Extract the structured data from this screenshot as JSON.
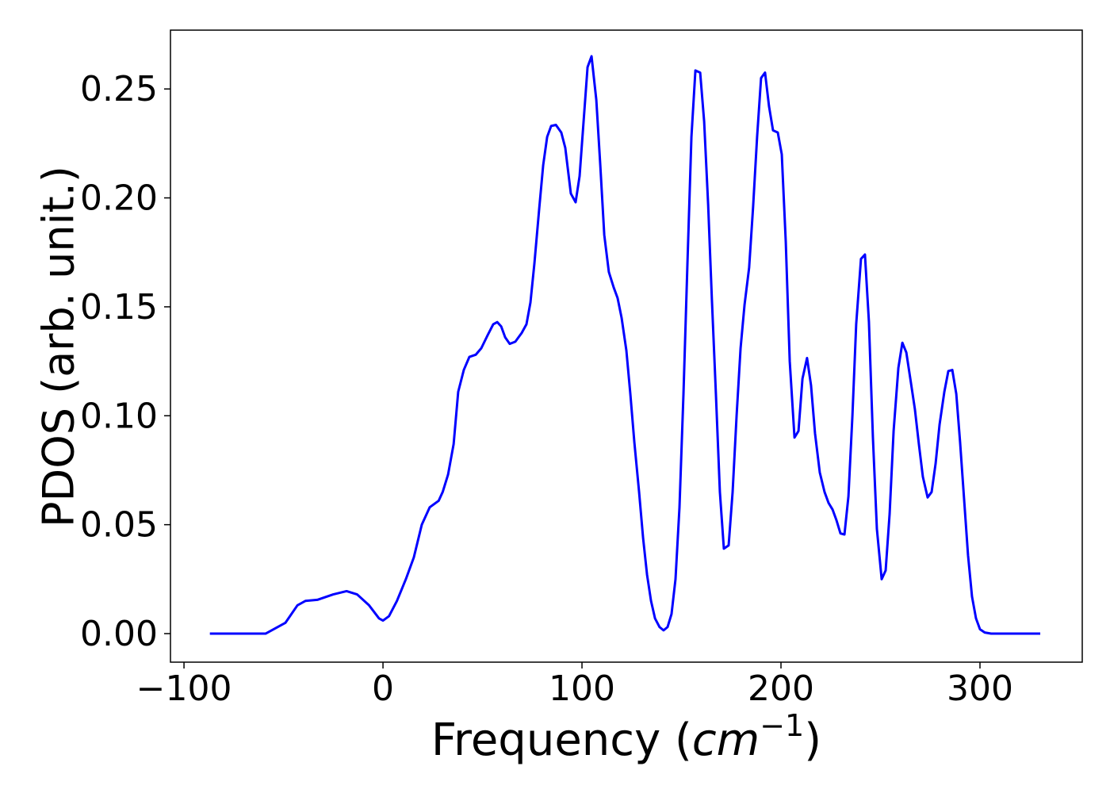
{
  "chart_data": {
    "type": "line",
    "ylabel": "PDOS (arb. unit.)",
    "xlabel_parts": [
      "Frequency (",
      "cm",
      "−1",
      ")"
    ],
    "color": "#0000ff",
    "x": [
      -87,
      -59,
      -55,
      -49,
      -43,
      -39,
      -33,
      -25,
      -18.3,
      -13,
      -7,
      -2,
      0,
      3,
      7,
      11.5,
      15.5,
      19.5,
      23.5,
      28,
      30,
      32.7,
      35.5,
      37.8,
      40.6,
      43.4,
      46.6,
      49.4,
      52.6,
      55.4,
      57.4,
      59.4,
      61.4,
      63.7,
      66.5,
      69.7,
      72.1,
      74.1,
      76.1,
      78.5,
      80.5,
      82.5,
      84.5,
      86.9,
      89.6,
      91.6,
      94.4,
      96.8,
      98.8,
      100.8,
      102.8,
      104.8,
      107.2,
      109.2,
      111.2,
      113.5,
      115.9,
      117.9,
      119.9,
      122.3,
      124.3,
      126.3,
      128.7,
      130.7,
      132.7,
      134.7,
      136.7,
      139,
      141,
      143,
      145,
      147,
      149,
      151,
      153,
      155,
      157,
      159.4,
      161.4,
      163.4,
      165.3,
      167.3,
      169.3,
      171.3,
      173.7,
      175.7,
      177.7,
      179.7,
      181.7,
      184,
      186,
      188,
      190,
      192,
      194,
      196,
      198.4,
      200.4,
      202.4,
      204.4,
      206.8,
      208.8,
      210.8,
      213.1,
      215.1,
      217.1,
      219.5,
      221.9,
      223.9,
      225.9,
      227.9,
      229.9,
      231.9,
      233.9,
      235.9,
      237.8,
      240.2,
      242.2,
      244.2,
      246.2,
      248.2,
      250.6,
      252.6,
      254.6,
      256.6,
      259,
      261,
      263,
      265,
      267.3,
      269.3,
      271.3,
      273.7,
      275.7,
      277.7,
      279.7,
      282.1,
      284.1,
      286.1,
      288.1,
      290,
      292,
      294,
      296,
      298,
      300,
      302.4,
      305.6,
      330.3
    ],
    "values": [
      0,
      0,
      0.002,
      0.005,
      0.013,
      0.015,
      0.0155,
      0.018,
      0.0195,
      0.018,
      0.013,
      0.007,
      0.006,
      0.008,
      0.015,
      0.025,
      0.035,
      0.05,
      0.058,
      0.061,
      0.065,
      0.073,
      0.087,
      0.111,
      0.121,
      0.127,
      0.128,
      0.131,
      0.137,
      0.142,
      0.143,
      0.141,
      0.136,
      0.133,
      0.134,
      0.138,
      0.142,
      0.152,
      0.17,
      0.195,
      0.215,
      0.228,
      0.233,
      0.2335,
      0.23,
      0.223,
      0.202,
      0.198,
      0.21,
      0.235,
      0.26,
      0.265,
      0.245,
      0.215,
      0.183,
      0.166,
      0.159,
      0.154,
      0.145,
      0.13,
      0.11,
      0.088,
      0.065,
      0.044,
      0.027,
      0.015,
      0.007,
      0.003,
      0.0015,
      0.003,
      0.009,
      0.025,
      0.058,
      0.11,
      0.17,
      0.228,
      0.2585,
      0.2575,
      0.235,
      0.197,
      0.153,
      0.11,
      0.065,
      0.039,
      0.0405,
      0.065,
      0.1,
      0.131,
      0.151,
      0.168,
      0.196,
      0.228,
      0.255,
      0.2575,
      0.242,
      0.231,
      0.23,
      0.22,
      0.18,
      0.125,
      0.09,
      0.093,
      0.117,
      0.1265,
      0.114,
      0.092,
      0.074,
      0.065,
      0.06,
      0.057,
      0.052,
      0.046,
      0.0455,
      0.063,
      0.1,
      0.142,
      0.172,
      0.174,
      0.143,
      0.09,
      0.048,
      0.025,
      0.029,
      0.055,
      0.093,
      0.122,
      0.1335,
      0.129,
      0.117,
      0.103,
      0.087,
      0.072,
      0.0625,
      0.065,
      0.078,
      0.096,
      0.111,
      0.1205,
      0.121,
      0.11,
      0.088,
      0.062,
      0.036,
      0.017,
      0.007,
      0.002,
      0.0005,
      0,
      0
    ],
    "xlim": [
      -106.8,
      351.4
    ],
    "ylim": [
      -0.0131,
      0.277
    ],
    "xticks": [
      {
        "value": -100,
        "label": "−100"
      },
      0,
      100,
      200,
      300
    ],
    "yticks": [
      {
        "value": 0,
        "label": "0.00"
      },
      {
        "value": 0.05,
        "label": "0.05"
      },
      {
        "value": 0.1,
        "label": "0.10"
      },
      {
        "value": 0.15,
        "label": "0.15"
      },
      {
        "value": 0.2,
        "label": "0.20"
      },
      {
        "value": 0.25,
        "label": "0.25"
      }
    ],
    "grid": false
  }
}
